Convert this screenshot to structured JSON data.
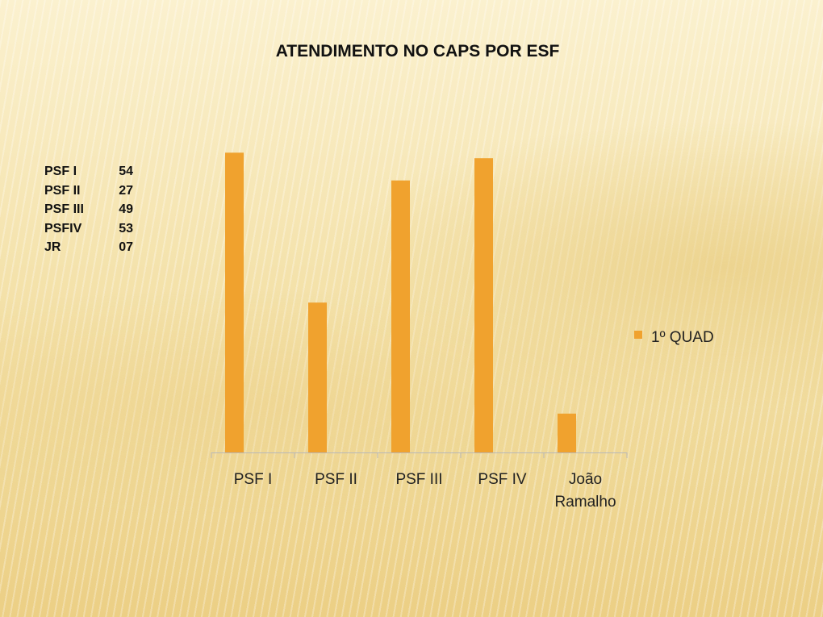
{
  "title": "ATENDIMENTO NO CAPS POR ESF",
  "summary": [
    {
      "label": "PSF I",
      "value": "54"
    },
    {
      "label": "PSF II",
      "value": "27"
    },
    {
      "label": "PSF III",
      "value": "49"
    },
    {
      "label": "PSFIV",
      "value": "53"
    },
    {
      "label": "JR",
      "value": "07"
    }
  ],
  "colors": {
    "bar": "#f0a22e",
    "axis": "#b8b8b8"
  },
  "chart_data": {
    "type": "bar",
    "title": "ATENDIMENTO NO CAPS POR ESF",
    "categories": [
      [
        "PSF I"
      ],
      [
        "PSF II"
      ],
      [
        "PSF III"
      ],
      [
        "PSF IV"
      ],
      [
        "João",
        "Ramalho"
      ]
    ],
    "series": [
      {
        "name": "1º QUAD",
        "values": [
          54,
          27,
          49,
          53,
          7
        ]
      }
    ],
    "ylim": [
      0,
      60
    ],
    "grid": false,
    "legend": "right"
  }
}
